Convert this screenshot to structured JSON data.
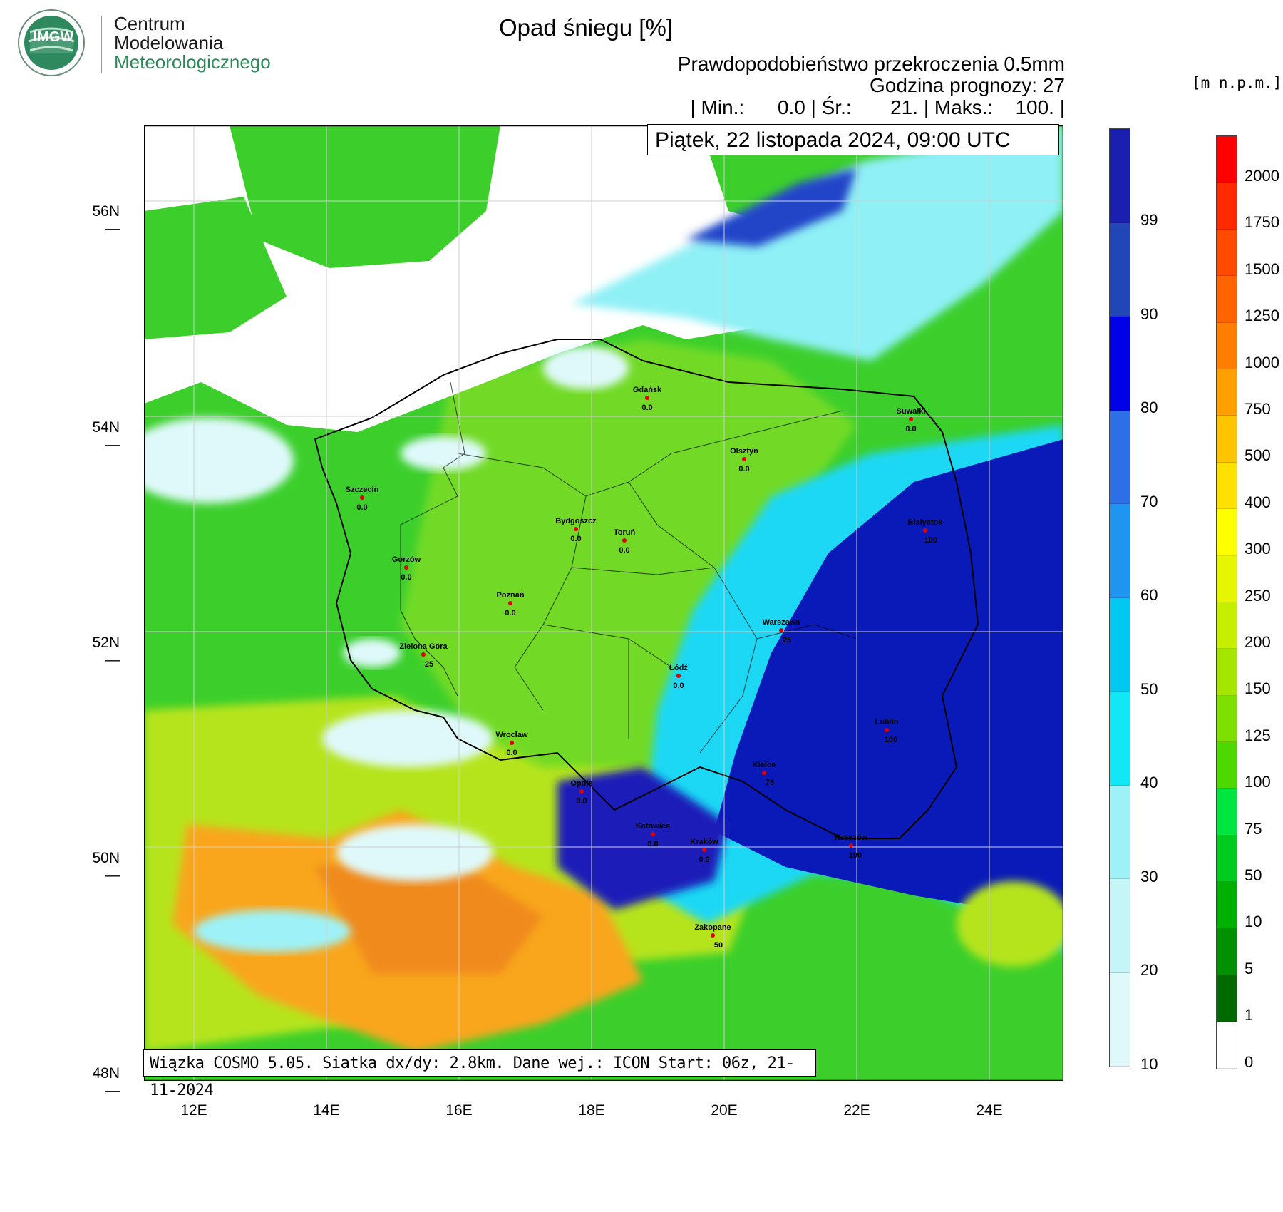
{
  "logo": {
    "badge_text": "IMGW",
    "line1": "Centrum",
    "line2": "Modelowania",
    "line3": "Meteorologicznego"
  },
  "header": {
    "title": "Opad śniegu [%]",
    "subtitle1": "Prawdopodobieństwo przekroczenia 0.5mm",
    "subtitle2": "Godzina prognozy: 27",
    "stats": "| Min.:      0.0 | Śr.:       21. | Maks.:    100. |"
  },
  "date_label": "Piątek, 22 listopada 2024, 09:00 UTC",
  "info_label": "Wiązka COSMO 5.05. Siatka dx/dy: 2.8km. Dane wej.: ICON Start: 06z, 21-11-2024",
  "units_label": "[m n.p.m.]",
  "axes": {
    "lat_ticks": [
      "56N",
      "54N",
      "52N",
      "50N",
      "48N"
    ],
    "lon_ticks": [
      "12E",
      "14E",
      "16E",
      "18E",
      "20E",
      "22E",
      "24E"
    ]
  },
  "colorbar_snow": {
    "labels": [
      "99",
      "90",
      "80",
      "70",
      "60",
      "50",
      "40",
      "30",
      "20",
      "10"
    ],
    "colors": [
      "#1a1fb0",
      "#2046b8",
      "#0000e6",
      "#2d6fe6",
      "#1e95f0",
      "#00c8f0",
      "#12e8f5",
      "#9ef2f7",
      "#c6f5f7",
      "#dff9fb"
    ]
  },
  "colorbar_elev": {
    "labels": [
      "2000",
      "1750",
      "1500",
      "1250",
      "1000",
      "750",
      "500",
      "400",
      "300",
      "250",
      "200",
      "150",
      "125",
      "100",
      "75",
      "50",
      "10",
      "5",
      "1",
      "0"
    ],
    "colors": [
      "#ff0000",
      "#ff2a00",
      "#ff4a00",
      "#ff6400",
      "#ff7d00",
      "#ffa000",
      "#ffc400",
      "#ffe100",
      "#ffff00",
      "#e6f500",
      "#c6ef00",
      "#a5e600",
      "#7de000",
      "#4cd800",
      "#00e640",
      "#00cc20",
      "#00b000",
      "#009000",
      "#006a00",
      "#ffffff"
    ]
  },
  "cities": [
    {
      "name": "Gdańsk",
      "value": "0.0"
    },
    {
      "name": "Suwałki",
      "value": "0.0"
    },
    {
      "name": "Olsztyn",
      "value": "0.0"
    },
    {
      "name": "Szczecin",
      "value": "0.0"
    },
    {
      "name": "Bydgoszcz",
      "value": "0.0"
    },
    {
      "name": "Toruń",
      "value": "0.0"
    },
    {
      "name": "Białystok",
      "value": "100"
    },
    {
      "name": "Gorzów",
      "value": "0.0"
    },
    {
      "name": "Poznań",
      "value": "0.0"
    },
    {
      "name": "Warszawa",
      "value": "25"
    },
    {
      "name": "Zielona Góra",
      "value": "25"
    },
    {
      "name": "Łódź",
      "value": "0.0"
    },
    {
      "name": "Lublin",
      "value": "100"
    },
    {
      "name": "Wrocław",
      "value": "0.0"
    },
    {
      "name": "Kielce",
      "value": "75"
    },
    {
      "name": "Opole",
      "value": "0.0"
    },
    {
      "name": "Katowice",
      "value": "0.0"
    },
    {
      "name": "Kraków",
      "value": "0.0"
    },
    {
      "name": "Rzeszów",
      "value": "100"
    },
    {
      "name": "Zakopane",
      "value": "50"
    }
  ]
}
